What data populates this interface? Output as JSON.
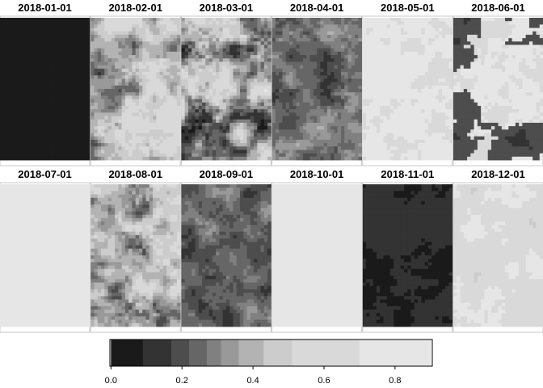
{
  "chart_data": {
    "type": "heatmap",
    "panels": [
      {
        "title": "2018-01-01",
        "base": 0.0,
        "var": 0.0,
        "wash": 0,
        "dark": 0
      },
      {
        "title": "2018-02-01",
        "base": 0.42,
        "var": 0.28,
        "wash": 0,
        "dark": 0
      },
      {
        "title": "2018-03-01",
        "base": 0.34,
        "var": 0.36,
        "wash": 0,
        "dark": 0
      },
      {
        "title": "2018-04-01",
        "base": 0.26,
        "var": 0.14,
        "wash": 0,
        "dark": 0
      },
      {
        "title": "2018-05-01",
        "base": 0.72,
        "var": 0.14,
        "wash": 0,
        "dark": 0
      },
      {
        "title": "2018-06-01",
        "base": 0.7,
        "var": 0.2,
        "wash": 0,
        "dark": 0.45
      },
      {
        "title": "2018-07-01",
        "base": 0.8,
        "var": 0.1,
        "wash": 0,
        "dark": 0
      },
      {
        "title": "2018-08-01",
        "base": 0.36,
        "var": 0.3,
        "wash": 0,
        "dark": 0
      },
      {
        "title": "2018-09-01",
        "base": 0.24,
        "var": 0.14,
        "wash": 0,
        "dark": 0
      },
      {
        "title": "2018-10-01",
        "base": 0.82,
        "var": 0.08,
        "wash": 0,
        "dark": 0
      },
      {
        "title": "2018-11-01",
        "base": 0.1,
        "var": 0.06,
        "wash": 0,
        "dark": 0
      },
      {
        "title": "2018-12-01",
        "base": 0.66,
        "var": 0.22,
        "wash": 0,
        "dark": 0
      }
    ],
    "colorbar": {
      "breaks": [
        0.0,
        0.09,
        0.17,
        0.22,
        0.27,
        0.31,
        0.36,
        0.43,
        0.51,
        0.7,
        0.9
      ],
      "colors": [
        "#1a1a1a",
        "#333333",
        "#4d4d4d",
        "#666666",
        "#808080",
        "#999999",
        "#b3b3b3",
        "#cccccc",
        "#d9d9d9",
        "#e6e6e6"
      ],
      "ticks": [
        0.0,
        0.2,
        0.4,
        0.6,
        0.8
      ],
      "tick_labels": [
        "0.0",
        "0.2",
        "0.4",
        "0.6",
        "0.8"
      ],
      "range": [
        -0.003,
        0.905
      ]
    },
    "grid": false,
    "legend": "bottom"
  }
}
